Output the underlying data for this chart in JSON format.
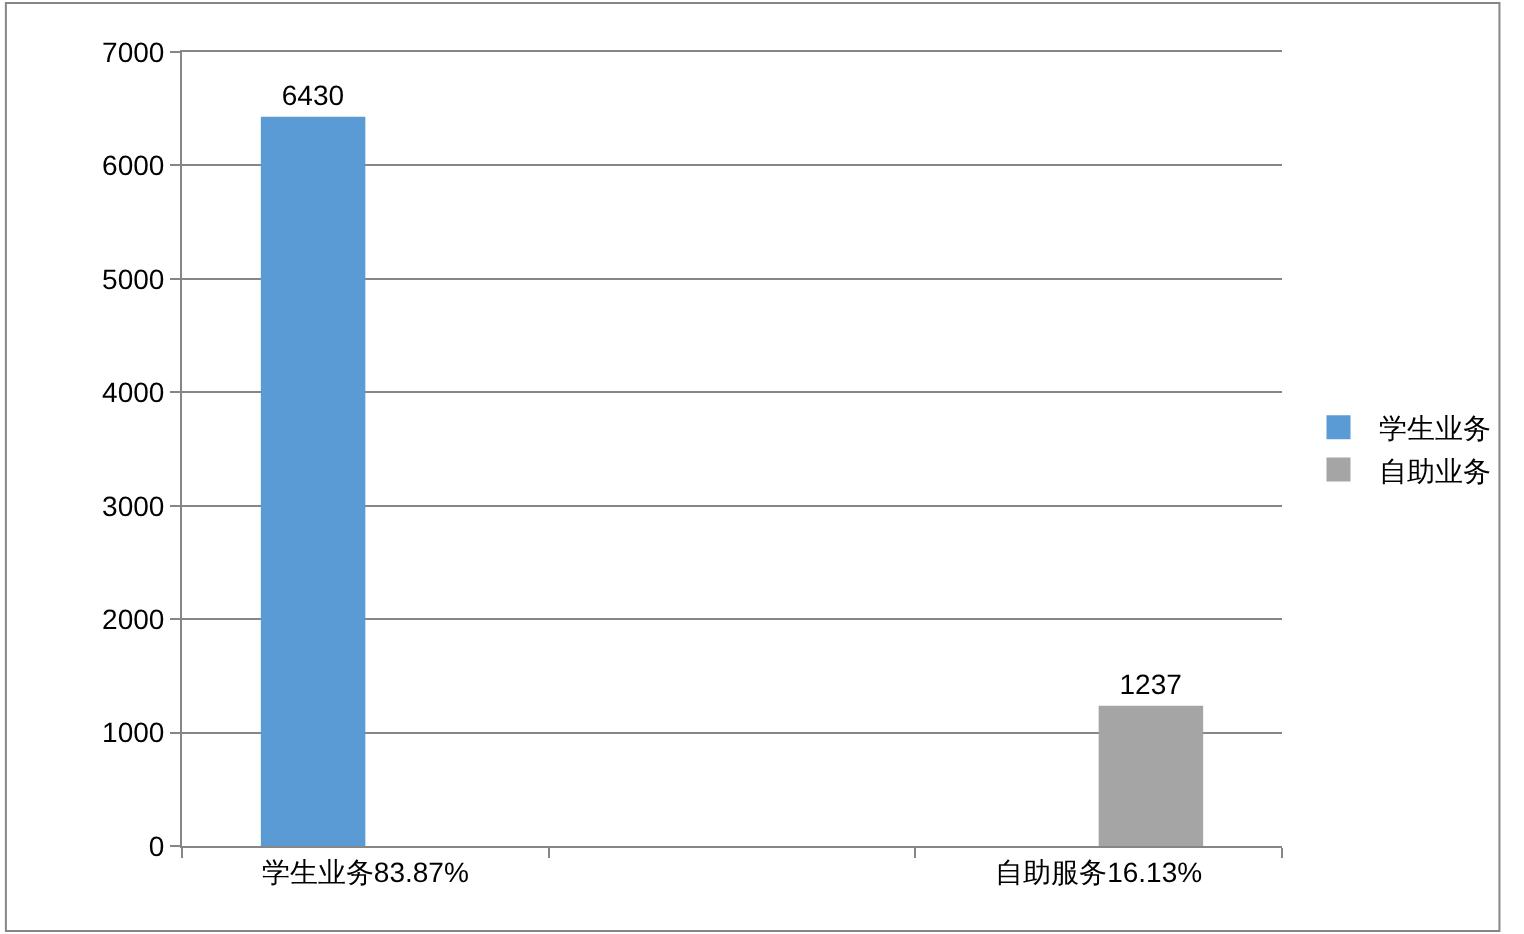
{
  "chart_data": {
    "type": "bar",
    "categories": [
      "学生业务83.87%",
      null,
      "自助服务16.13%"
    ],
    "series": [
      {
        "name": "学生业务",
        "color": "#5b9bd5",
        "values": [
          6430,
          null,
          null
        ]
      },
      {
        "name": "自助业务",
        "color": "#a5a5a5",
        "values": [
          null,
          null,
          1237
        ]
      }
    ],
    "ylim": [
      0,
      7000
    ],
    "yticks": [
      0,
      1000,
      2000,
      3000,
      4000,
      5000,
      6000,
      7000
    ],
    "grid": "y",
    "legend": "right",
    "data_labels": true
  }
}
